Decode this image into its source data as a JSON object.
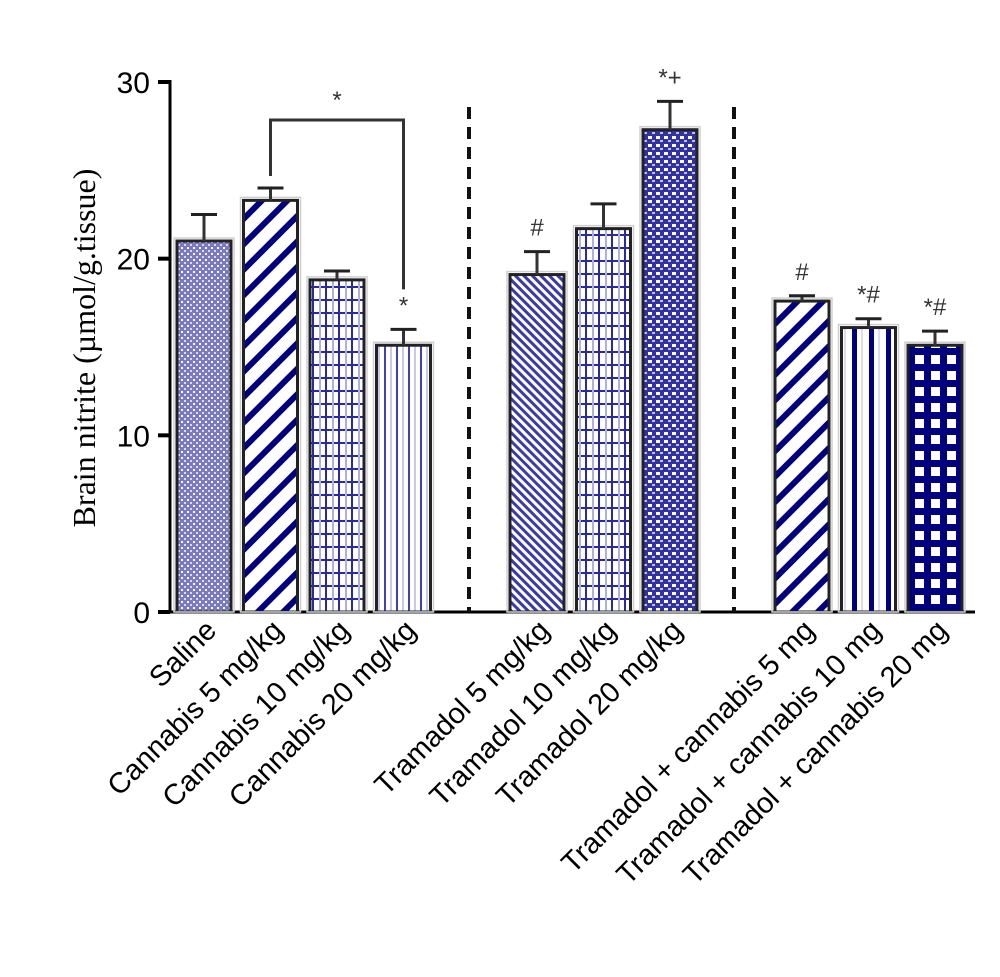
{
  "chart_data": {
    "type": "bar",
    "title": "",
    "xlabel": "",
    "ylabel": "Brain nitrite (µmol/g.tissue)",
    "ylim": [
      0,
      30
    ],
    "yticks": [
      0,
      10,
      20,
      30
    ],
    "grid": false,
    "categories": [
      "Saline",
      "Cannabis 5 mg/kg",
      "Cannabis 10 mg/kg",
      "Cannabis 20 mg/kg",
      "Tramadol 5 mg/kg",
      "Tramadol 10 mg/kg",
      "Tramadol 20 mg/kg",
      "Tramadol + cannabis 5 mg",
      "Tramadol + cannabis 10 mg",
      "Tramadol + cannabis 20 mg"
    ],
    "groups": [
      [
        0,
        1,
        2,
        3
      ],
      [
        4,
        5,
        6
      ],
      [
        7,
        8,
        9
      ]
    ],
    "values": [
      21.0,
      23.3,
      18.8,
      15.1,
      19.1,
      21.7,
      27.3,
      17.6,
      16.1,
      15.1
    ],
    "errors": [
      1.5,
      0.7,
      0.5,
      0.9,
      1.3,
      1.4,
      1.6,
      0.3,
      0.5,
      0.8
    ],
    "patterns": [
      "dots",
      "wide-diag",
      "grid-light",
      "vlines-light",
      "fine-diag",
      "grid-light",
      "dense-check",
      "wide-diag",
      "vlines-dark",
      "grid-dark"
    ],
    "annotations": [
      "",
      "",
      "",
      "*",
      "#",
      "",
      "*+",
      "#",
      "*#",
      "*#"
    ],
    "bracket": {
      "from": 1,
      "to": 3,
      "label": "*"
    },
    "colors": {
      "navy": "#00007f",
      "light_fill": "#8c8cc8",
      "axis": "#000000",
      "outline": "#333333"
    }
  }
}
